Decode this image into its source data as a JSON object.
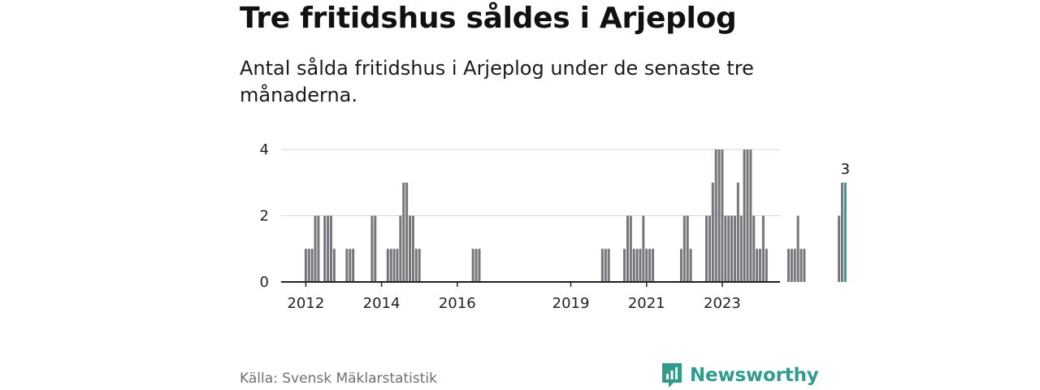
{
  "title": "Tre fritidshus såldes i Arjeplog",
  "subtitle": "Antal sålda fritidshus i Arjeplog under de senaste tre månaderna.",
  "source": "Källa: Svensk Mäklarstatistik",
  "brand": {
    "name": "Newsworthy",
    "icon": "newsworthy-logo-icon",
    "color": "#2f9c8c"
  },
  "chart_data": {
    "type": "bar",
    "x_start": "2011-12",
    "x_ticks": [
      "2012",
      "2014",
      "2016",
      "2019",
      "2021",
      "2023"
    ],
    "y_ticks": [
      "0",
      "2",
      "4"
    ],
    "ylim": [
      0,
      4
    ],
    "bar_color": "#76757a",
    "highlight_color": "#2a9d8f",
    "highlight_label": "3",
    "values": [
      0,
      1,
      1,
      1,
      2,
      2,
      0,
      2,
      2,
      2,
      1,
      0,
      0,
      0,
      1,
      1,
      1,
      0,
      0,
      0,
      0,
      0,
      2,
      2,
      0,
      0,
      0,
      1,
      1,
      1,
      1,
      2,
      3,
      3,
      2,
      2,
      1,
      1,
      0,
      0,
      0,
      0,
      0,
      0,
      0,
      0,
      0,
      0,
      0,
      0,
      0,
      0,
      0,
      0,
      1,
      1,
      1,
      0,
      0,
      0,
      0,
      0,
      0,
      0,
      0,
      0,
      0,
      0,
      0,
      0,
      0,
      0,
      0,
      0,
      0,
      0,
      0,
      0,
      0,
      0,
      0,
      0,
      0,
      0,
      0,
      0,
      0,
      0,
      0,
      0,
      0,
      0,
      0,
      0,
      0,
      1,
      1,
      1,
      0,
      0,
      0,
      0,
      1,
      2,
      2,
      1,
      1,
      1,
      2,
      1,
      1,
      1,
      0,
      0,
      0,
      0,
      0,
      0,
      0,
      0,
      1,
      2,
      2,
      1,
      0,
      0,
      0,
      0,
      2,
      2,
      3,
      4,
      4,
      4,
      2,
      2,
      2,
      2,
      3,
      2,
      4,
      4,
      4,
      2,
      1,
      1,
      2,
      1,
      0,
      0,
      0,
      0,
      0,
      0,
      1,
      1,
      1,
      2,
      1,
      1,
      0,
      0,
      0,
      0,
      0,
      0,
      0,
      0,
      0,
      0,
      2,
      3,
      3
    ]
  }
}
